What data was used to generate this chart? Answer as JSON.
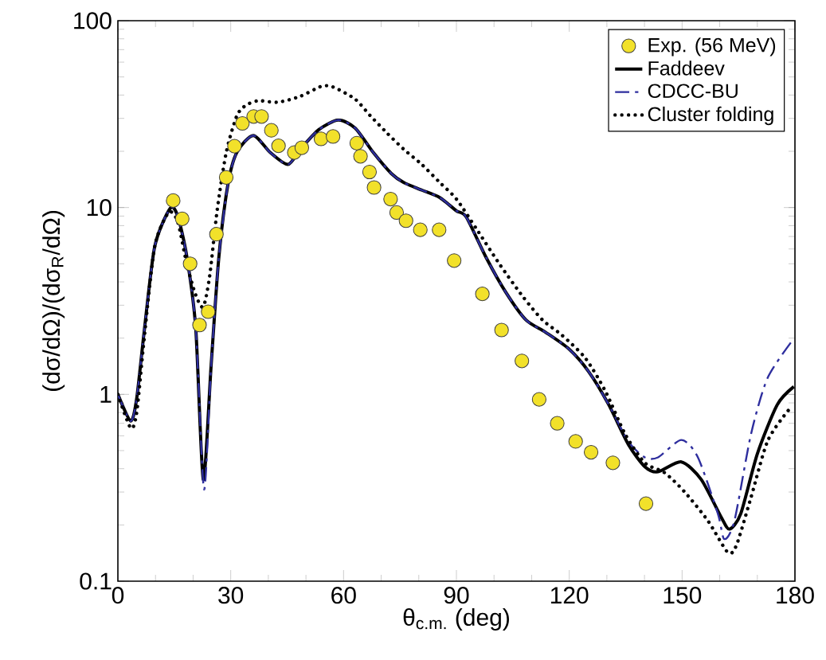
{
  "chart_data": {
    "type": "line",
    "xlabel": "θ$_{c.m.}$ (deg)",
    "ylabel": "(dσ/dΩ)/(dσ$_{R}$/dΩ)",
    "log": "y",
    "xlim": [
      0,
      180
    ],
    "ylim": [
      0.1,
      100
    ],
    "xticks": [
      0,
      30,
      60,
      90,
      120,
      150,
      180
    ],
    "yticks": [
      0.1,
      1,
      10,
      100
    ],
    "legend": "top right",
    "grid": false,
    "series": [
      {
        "name": "Exp. (56 MeV)",
        "type": "scatter",
        "marker": "circle",
        "color": "#f2e12a",
        "x": [
          14.7,
          17.1,
          19.2,
          21.7,
          24.0,
          26.2,
          28.8,
          31.0,
          33.1,
          36.1,
          38.2,
          40.8,
          42.7,
          46.9,
          48.9,
          54.0,
          57.2,
          63.5,
          64.5,
          66.9,
          68.1,
          72.5,
          74.1,
          76.6,
          80.4,
          85.4,
          89.4,
          96.9,
          102.0,
          107.4,
          112.0,
          116.8,
          121.7,
          125.8,
          131.6,
          140.4
        ],
        "values": [
          10.9,
          8.7,
          5.0,
          2.35,
          2.77,
          7.2,
          14.5,
          21.3,
          28.2,
          30.7,
          30.7,
          25.9,
          21.4,
          19.7,
          20.9,
          23.3,
          24.0,
          22.1,
          18.8,
          15.5,
          12.8,
          11.1,
          9.4,
          8.5,
          7.6,
          7.6,
          5.2,
          3.45,
          2.21,
          1.51,
          0.94,
          0.7,
          0.56,
          0.49,
          0.43,
          0.26
        ]
      },
      {
        "name": "Faddeev",
        "marker": "none",
        "line_style": "solid",
        "color": "#000000",
        "x": [
          0,
          3.4,
          5,
          7,
          9.8,
          13.9,
          15.9,
          18.3,
          20.7,
          22.7,
          24.8,
          26.8,
          29.2,
          31.6,
          36.0,
          40.5,
          45.2,
          48.5,
          53.4,
          58.6,
          63.1,
          67.9,
          72.7,
          76,
          80.8,
          85.6,
          90,
          92.6,
          97.9,
          103.2,
          108.5,
          113.7,
          119.9,
          125.2,
          130.5,
          135.7,
          140.1,
          143.6,
          149.8,
          155.1,
          160.4,
          162.6,
          165.6,
          170,
          175.3,
          179.7
        ],
        "values": [
          1.0,
          0.72,
          0.95,
          2.18,
          6.2,
          9.9,
          9.0,
          5.5,
          2.26,
          0.35,
          1.44,
          5.3,
          13.1,
          19.7,
          24.3,
          19.7,
          17.0,
          20.5,
          26.1,
          29.4,
          26.6,
          19.7,
          15.2,
          13.6,
          12.4,
          11.3,
          9.6,
          8.9,
          5.4,
          3.5,
          2.5,
          2.15,
          1.75,
          1.32,
          0.88,
          0.54,
          0.41,
          0.385,
          0.435,
          0.35,
          0.22,
          0.19,
          0.23,
          0.48,
          0.88,
          1.1
        ]
      },
      {
        "name": "CDCC-BU",
        "marker": "none",
        "line_style": "dashdot",
        "color": "#2e2e9e",
        "x": [
          0,
          3.4,
          5,
          7,
          9.8,
          13.9,
          15.9,
          18.3,
          20.7,
          22.9,
          24.8,
          26.8,
          29.2,
          31.6,
          36.0,
          40.5,
          45.2,
          48.5,
          53.4,
          58.6,
          63.1,
          67.9,
          72.7,
          76,
          80.8,
          85.6,
          90,
          92.6,
          97.9,
          103.2,
          108.5,
          113.7,
          119.9,
          125.2,
          130.5,
          135.7,
          140.1,
          143.6,
          149.8,
          154.2,
          159.5,
          161.2,
          163.9,
          168.3,
          172.7,
          179.3
        ],
        "values": [
          1.0,
          0.72,
          0.95,
          2.18,
          6.2,
          9.9,
          9.0,
          5.5,
          2.26,
          0.31,
          1.44,
          5.3,
          13.1,
          19.7,
          24.3,
          19.7,
          17.0,
          20.5,
          26.1,
          29.4,
          26.6,
          19.7,
          15.2,
          13.6,
          12.4,
          11.3,
          9.6,
          8.9,
          5.4,
          3.5,
          2.5,
          2.15,
          1.75,
          1.32,
          0.88,
          0.56,
          0.46,
          0.46,
          0.57,
          0.46,
          0.23,
          0.168,
          0.21,
          0.61,
          1.22,
          1.94
        ]
      },
      {
        "name": "Cluster folding",
        "marker": "none",
        "line_style": "dotted",
        "color": "#000000",
        "x": [
          0,
          3.4,
          5,
          7,
          9.8,
          13.5,
          15.9,
          18.3,
          20.7,
          22.7,
          24.4,
          26.4,
          28.8,
          31.6,
          34,
          37.3,
          42.5,
          48.5,
          54.2,
          57.4,
          63.1,
          67.1,
          71.5,
          76,
          80.8,
          85.6,
          90,
          95.3,
          101.4,
          107.6,
          112.9,
          118.1,
          124.3,
          129.6,
          134.9,
          140.1,
          145.4,
          150.7,
          156.9,
          162.1,
          164.4,
          168.3,
          172.7,
          178,
          179.7
        ],
        "values": [
          1.0,
          0.66,
          0.8,
          2.0,
          6.2,
          9.4,
          8.4,
          5.0,
          3.4,
          2.94,
          4.3,
          9.7,
          19.7,
          30.9,
          35.2,
          37.3,
          36.6,
          39.4,
          44.6,
          44.0,
          38.0,
          31.0,
          25.1,
          20.5,
          17.0,
          13.6,
          11.1,
          7.7,
          5.0,
          3.35,
          2.5,
          2.07,
          1.56,
          1.04,
          0.61,
          0.43,
          0.38,
          0.3,
          0.21,
          0.143,
          0.155,
          0.28,
          0.56,
          0.81,
          0.85
        ]
      }
    ]
  }
}
